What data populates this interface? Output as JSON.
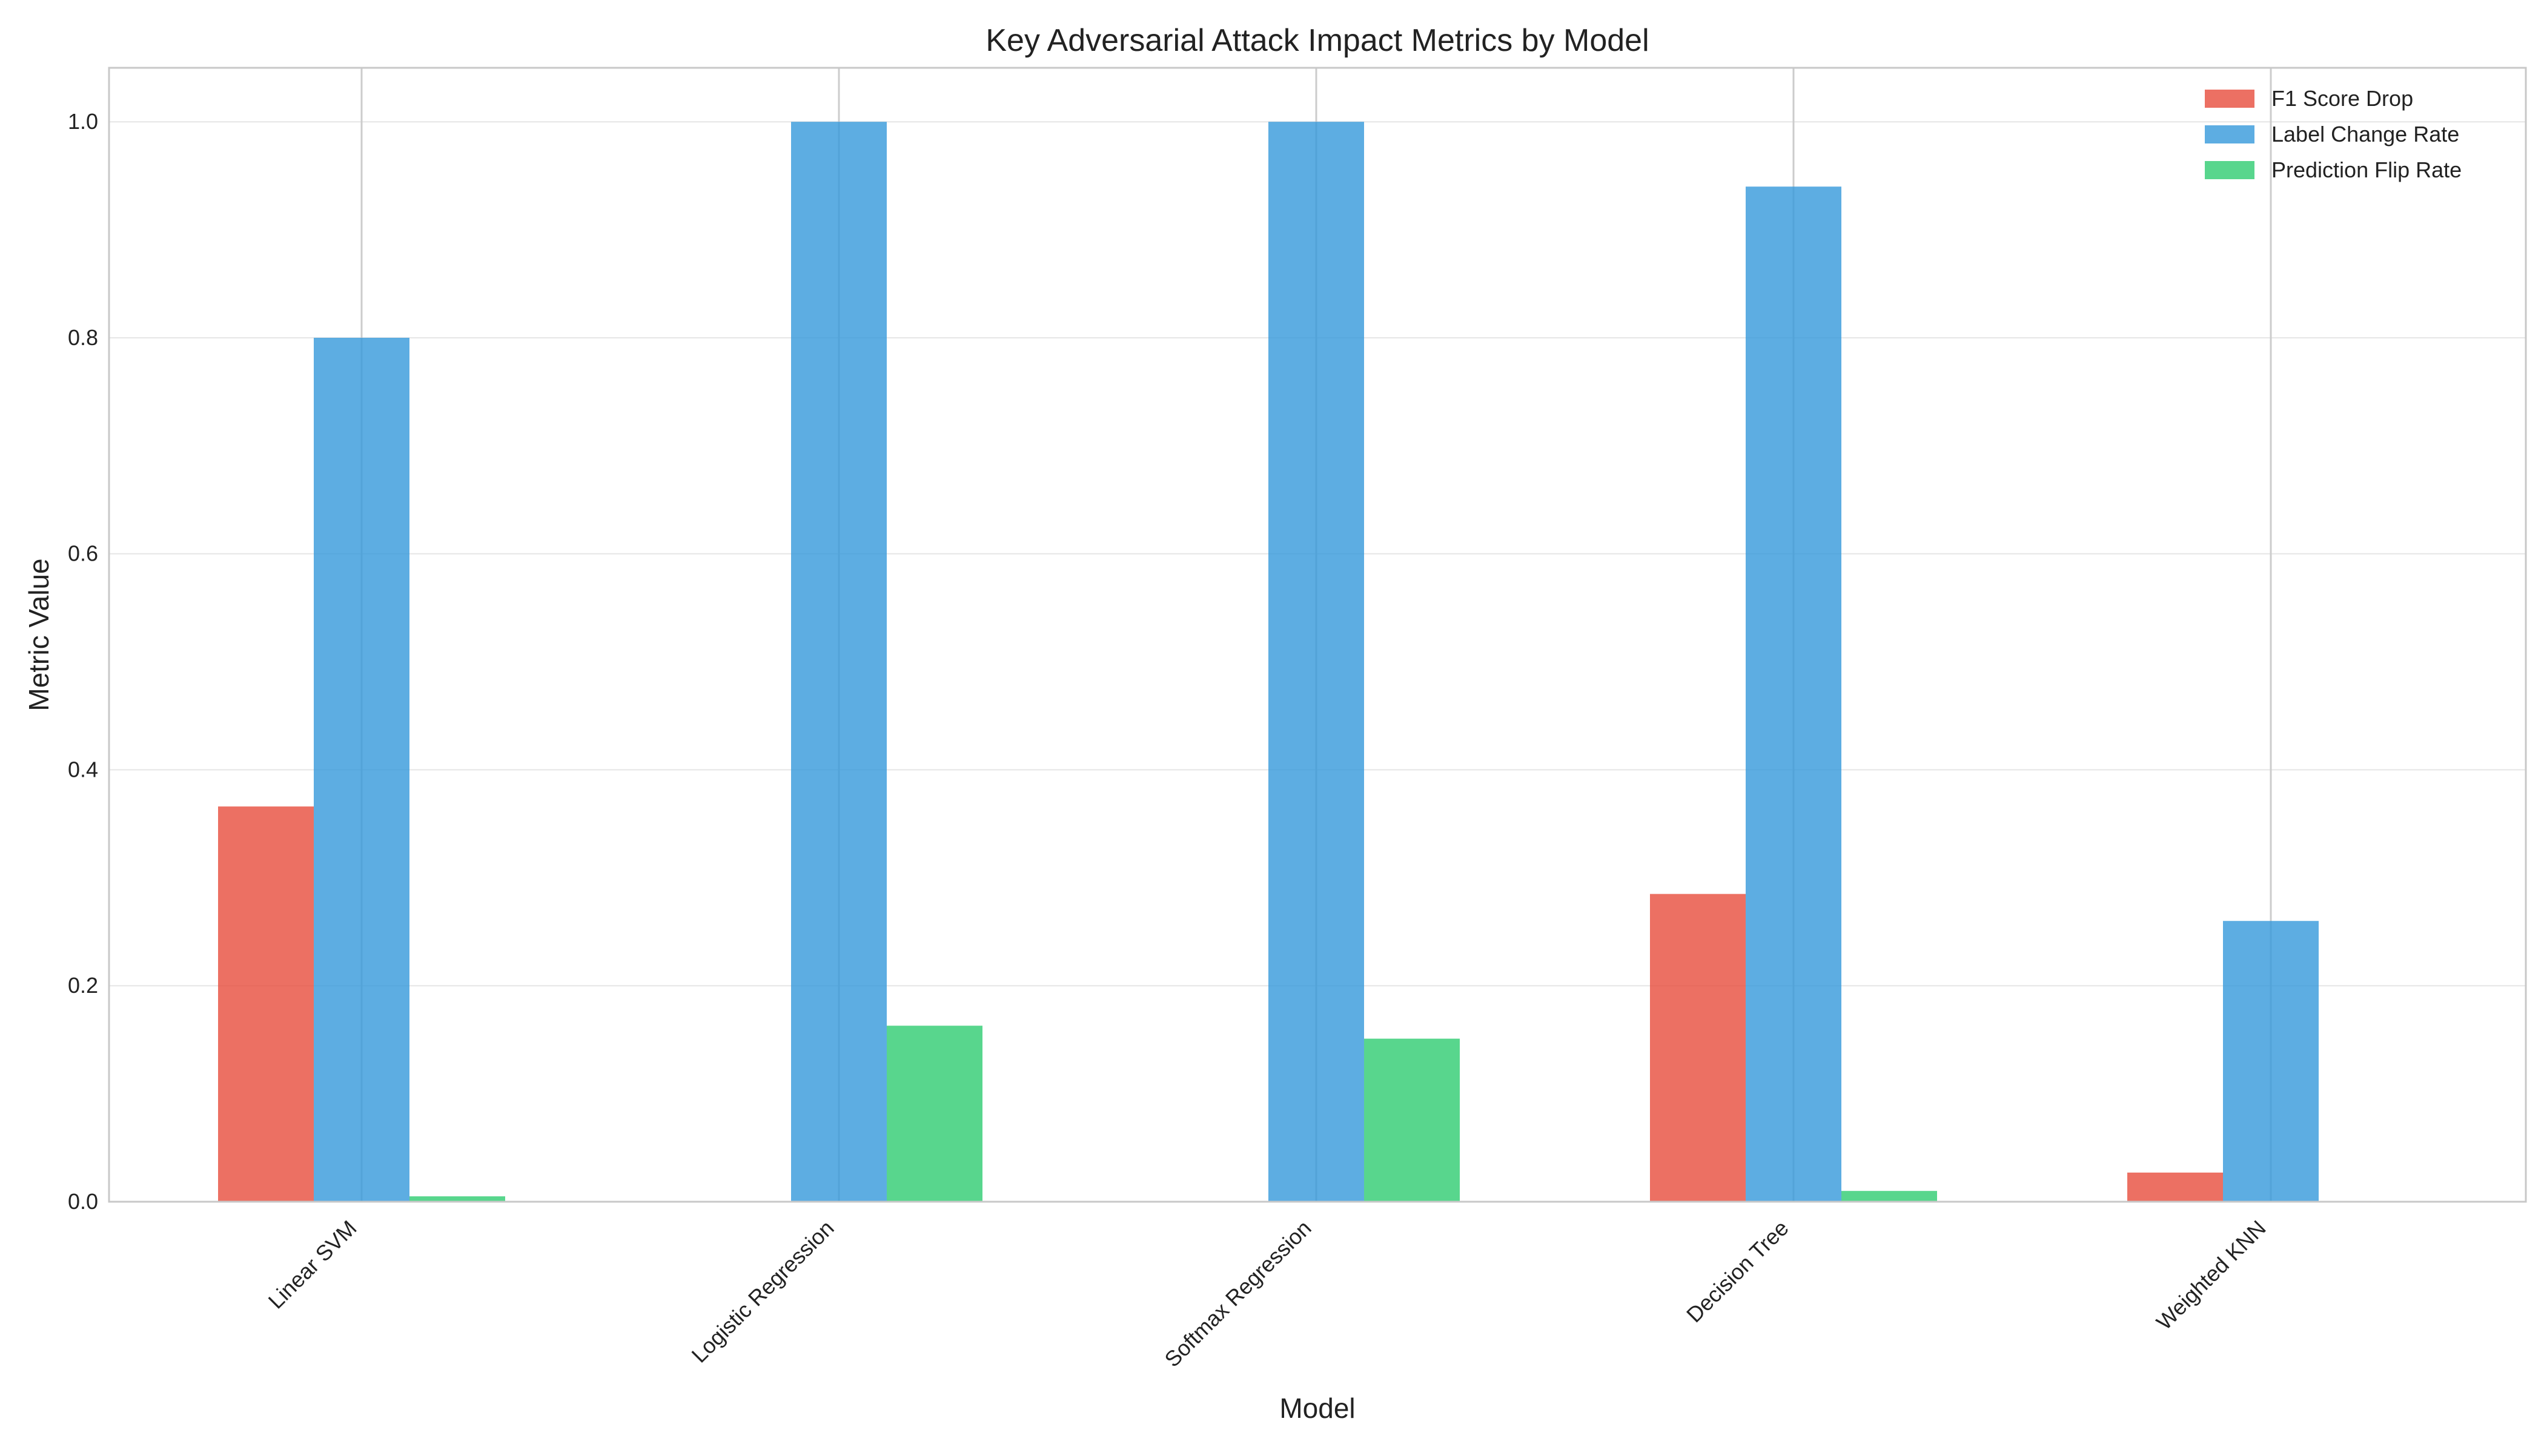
{
  "chart_data": {
    "type": "bar",
    "title": "Key Adversarial Attack Impact Metrics by Model",
    "xlabel": "Model",
    "ylabel": "Metric Value",
    "categories": [
      "Linear SVM",
      "Logistic Regression",
      "Softmax Regression",
      "Decision Tree",
      "Weighted KNN"
    ],
    "series": [
      {
        "name": "F1 Score Drop",
        "color": "#e74c3c",
        "values": [
          0.366,
          0.0,
          0.0,
          0.285,
          0.027
        ]
      },
      {
        "name": "Label Change Rate",
        "color": "#3498db",
        "values": [
          0.8,
          1.0,
          1.0,
          0.94,
          0.26
        ]
      },
      {
        "name": "Prediction Flip Rate",
        "color": "#2ecc71",
        "values": [
          0.005,
          0.163,
          0.151,
          0.01,
          0.0
        ]
      }
    ],
    "ylim": [
      0,
      1.05
    ],
    "yticks": [
      0.0,
      0.2,
      0.4,
      0.6,
      0.8,
      1.0
    ],
    "ytick_labels": [
      "0.0",
      "0.2",
      "0.4",
      "0.6",
      "0.8",
      "1.0"
    ],
    "bar_opacity": 0.8,
    "grid": true,
    "legend_position": "top-right"
  }
}
